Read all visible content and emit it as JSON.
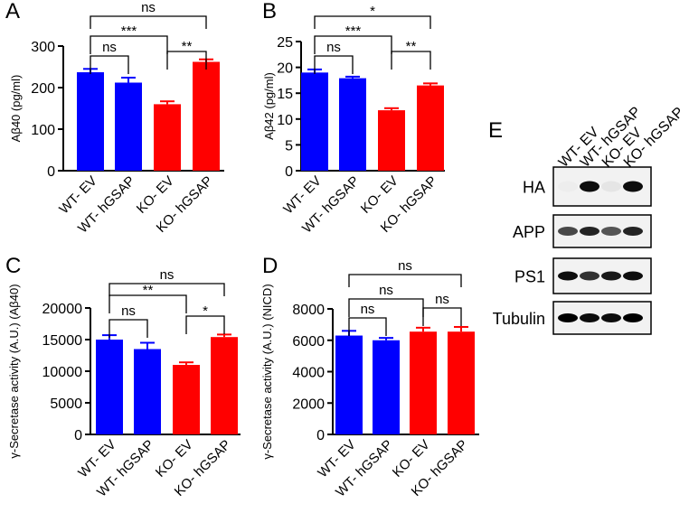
{
  "chart_data": [
    {
      "type": "bar",
      "label": "A",
      "ylabel": "Aβ40 (pg/ml)",
      "categories": [
        "WT- EV",
        "WT- hGSAP",
        "KO- EV",
        "KO- hGSAP"
      ],
      "series": [
        {
          "colors": [
            "#0000ff",
            "#0000ff",
            "#ff0000",
            "#ff0000"
          ],
          "values": [
            237,
            212,
            160,
            262
          ],
          "errors": [
            8,
            12,
            7,
            6
          ]
        }
      ],
      "ylim": [
        0,
        300
      ],
      "yticks": [
        0,
        100,
        200,
        300
      ],
      "comparisons": [
        {
          "from": "WT- EV",
          "to": "KO- hGSAP",
          "label": "ns"
        },
        {
          "from": "WT- EV",
          "to": "KO- EV",
          "label": "***"
        },
        {
          "from": "WT- EV",
          "to": "WT- hGSAP",
          "label": "ns"
        },
        {
          "from": "KO- EV",
          "to": "KO- hGSAP",
          "label": "**"
        }
      ]
    },
    {
      "type": "bar",
      "label": "B",
      "ylabel": "Aβ42 (pg/ml)",
      "categories": [
        "WT- EV",
        "WT- hGSAP",
        "KO- EV",
        "KO- hGSAP"
      ],
      "series": [
        {
          "colors": [
            "#0000ff",
            "#0000ff",
            "#ff0000",
            "#ff0000"
          ],
          "values": [
            19,
            17.9,
            11.7,
            16.5
          ],
          "errors": [
            0.6,
            0.3,
            0.4,
            0.4
          ]
        }
      ],
      "ylim": [
        0,
        25
      ],
      "yticks": [
        0,
        5,
        10,
        15,
        20,
        25
      ],
      "comparisons": [
        {
          "from": "WT- EV",
          "to": "KO- hGSAP",
          "label": "*"
        },
        {
          "from": "WT- EV",
          "to": "KO- EV",
          "label": "***"
        },
        {
          "from": "WT- EV",
          "to": "WT- hGSAP",
          "label": "ns"
        },
        {
          "from": "KO- EV",
          "to": "KO- hGSAP",
          "label": "**"
        }
      ]
    },
    {
      "type": "bar",
      "label": "C",
      "ylabel": "γ-Secretase activity (A.U.) (Aβ40)",
      "categories": [
        "WT- EV",
        "WT- hGSAP",
        "KO- EV",
        "KO- hGSAP"
      ],
      "series": [
        {
          "colors": [
            "#0000ff",
            "#0000ff",
            "#ff0000",
            "#ff0000"
          ],
          "values": [
            15000,
            13500,
            11000,
            15400
          ],
          "errors": [
            700,
            1000,
            400,
            400
          ]
        }
      ],
      "ylim": [
        0,
        20000
      ],
      "yticks": [
        0,
        5000,
        10000,
        15000,
        20000
      ],
      "comparisons": [
        {
          "from": "WT- EV",
          "to": "KO- hGSAP",
          "label": "ns"
        },
        {
          "from": "WT- EV",
          "to": "KO- EV",
          "label": "**"
        },
        {
          "from": "WT- EV",
          "to": "WT- hGSAP",
          "label": "ns"
        },
        {
          "from": "KO- EV",
          "to": "KO- hGSAP",
          "label": "*"
        }
      ]
    },
    {
      "type": "bar",
      "label": "D",
      "ylabel": "γ-Secretase activity (A.U.) (NICD)",
      "categories": [
        "WT- EV",
        "WT- hGSAP",
        "KO- EV",
        "KO- hGSAP"
      ],
      "series": [
        {
          "colors": [
            "#0000ff",
            "#0000ff",
            "#ff0000",
            "#ff0000"
          ],
          "values": [
            6300,
            6000,
            6550,
            6550
          ],
          "errors": [
            300,
            150,
            250,
            300
          ]
        }
      ],
      "ylim": [
        0,
        8000
      ],
      "yticks": [
        0,
        2000,
        4000,
        6000,
        8000
      ],
      "comparisons": [
        {
          "from": "WT- EV",
          "to": "KO- hGSAP",
          "label": "ns"
        },
        {
          "from": "WT- EV",
          "to": "KO- EV",
          "label": "ns"
        },
        {
          "from": "WT- EV",
          "to": "WT- hGSAP",
          "label": "ns"
        },
        {
          "from": "KO- EV",
          "to": "KO- hGSAP",
          "label": "ns"
        }
      ]
    }
  ],
  "blot": {
    "label": "E",
    "lanes": [
      "WT- EV",
      "WT- hGSAP",
      "KO- EV",
      "KO- hGSAP"
    ],
    "rows": [
      "HA",
      "APP",
      "PS1",
      "Tubulin"
    ]
  }
}
